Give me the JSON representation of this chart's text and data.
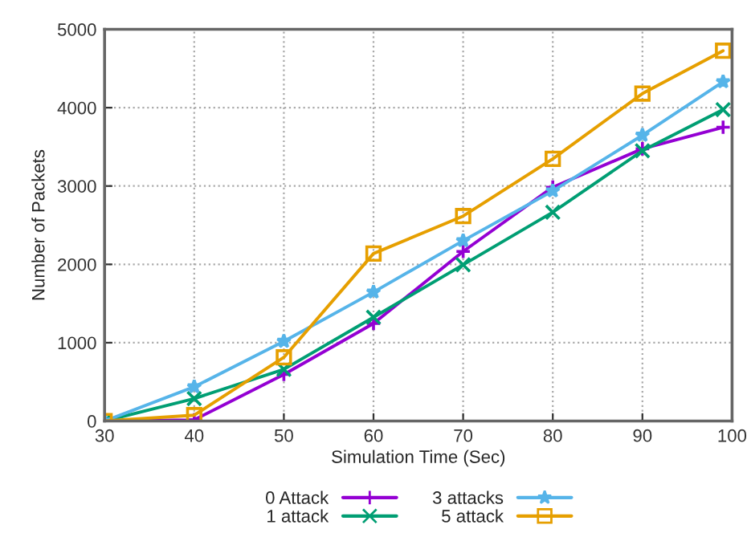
{
  "chart_data": {
    "type": "line",
    "xlabel": "Simulation Time (Sec)",
    "ylabel": "Number of Packets",
    "x": [
      30,
      40,
      50,
      60,
      70,
      80,
      90,
      99
    ],
    "series": [
      {
        "name": "0 Attack",
        "color": "#9400d3",
        "marker": "cross",
        "values": [
          0,
          15,
          595,
          1245,
          2165,
          2985,
          3475,
          3750
        ]
      },
      {
        "name": "1 attack",
        "color": "#009e73",
        "marker": "x",
        "values": [
          0,
          287,
          660,
          1325,
          1995,
          2665,
          3450,
          3975
        ]
      },
      {
        "name": "3 attacks",
        "color": "#56b4e9",
        "marker": "star",
        "values": [
          0,
          437,
          1018,
          1646,
          2302,
          2937,
          3648,
          4331
        ]
      },
      {
        "name": "5 attack",
        "color": "#e69f00",
        "marker": "square",
        "values": [
          0,
          75,
          813,
          2138,
          2616,
          3347,
          4180,
          4727
        ]
      }
    ],
    "xlim": [
      30,
      100
    ],
    "xticks": [
      30,
      40,
      50,
      60,
      70,
      80,
      90,
      100
    ],
    "ylim": [
      0,
      5000
    ],
    "yticks": [
      0,
      1000,
      2000,
      3000,
      4000,
      5000
    ],
    "grid": true,
    "legend": "bottom",
    "line_style": "solid"
  }
}
